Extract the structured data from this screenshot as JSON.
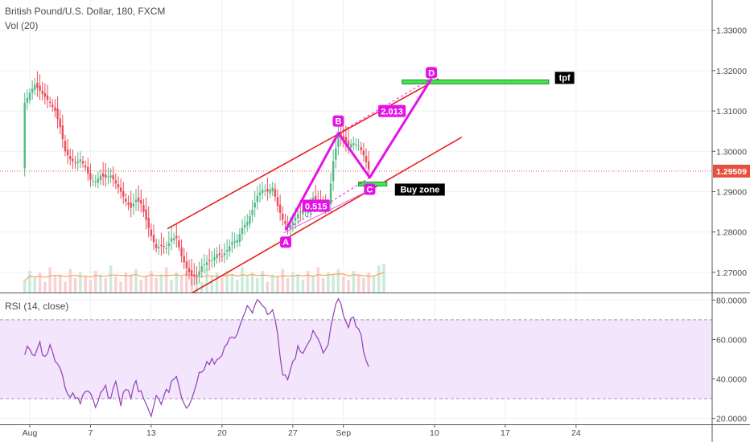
{
  "chart_data": {
    "type": "line",
    "symbol_title": "British Pound/U.S. Dollar, 180, FXCM",
    "volume_label": "Vol (20)",
    "rsi_label": "RSI (14, close)",
    "x_ticks": [
      "Aug",
      "7",
      "13",
      "20",
      "27",
      "Sep",
      "10",
      "17",
      "24"
    ],
    "price_axis": {
      "ticks": [
        "1.33000",
        "1.32000",
        "1.31000",
        "1.30000",
        "1.29000",
        "1.28000",
        "1.27000"
      ],
      "range": [
        1.265,
        1.3375
      ]
    },
    "rsi_axis": {
      "ticks": [
        "80.0000",
        "60.0000",
        "40.0000",
        "20.0000"
      ],
      "range": [
        17,
        83
      ],
      "band": [
        30,
        70
      ]
    },
    "current_price": {
      "label": "1.29509",
      "value": 1.29509,
      "color": "#e5503f"
    },
    "price_path": [
      [
        -0.5,
        1.312
      ],
      [
        0,
        1.3145
      ],
      [
        0.5,
        1.3165
      ],
      [
        1,
        1.315
      ],
      [
        1.5,
        1.3135
      ],
      [
        2,
        1.312
      ],
      [
        2.5,
        1.31
      ],
      [
        3,
        1.306
      ],
      [
        3.5,
        1.3
      ],
      [
        4,
        1.298
      ],
      [
        4.5,
        1.297
      ],
      [
        5,
        1.298
      ],
      [
        5.5,
        1.296
      ],
      [
        6,
        1.293
      ],
      [
        6.5,
        1.2925
      ],
      [
        7,
        1.294
      ],
      [
        7.5,
        1.2935
      ],
      [
        8,
        1.294
      ],
      [
        8.5,
        1.292
      ],
      [
        9,
        1.29
      ],
      [
        9.5,
        1.2875
      ],
      [
        10,
        1.286
      ],
      [
        10.5,
        1.288
      ],
      [
        11,
        1.287
      ],
      [
        11.5,
        1.283
      ],
      [
        12,
        1.279
      ],
      [
        12.5,
        1.276
      ],
      [
        13,
        1.2765
      ],
      [
        13.5,
        1.276
      ],
      [
        14,
        1.2785
      ],
      [
        14.5,
        1.2785
      ],
      [
        15,
        1.274
      ],
      [
        15.5,
        1.271
      ],
      [
        16,
        1.269
      ],
      [
        16.5,
        1.269
      ],
      [
        17,
        1.2715
      ],
      [
        17.5,
        1.2725
      ],
      [
        18,
        1.273
      ],
      [
        18.5,
        1.2745
      ],
      [
        19,
        1.274
      ],
      [
        19.5,
        1.2755
      ],
      [
        20,
        1.2775
      ],
      [
        20.5,
        1.278
      ],
      [
        21,
        1.281
      ],
      [
        21.5,
        1.2825
      ],
      [
        22,
        1.2855
      ],
      [
        22.5,
        1.289
      ],
      [
        23,
        1.2905
      ],
      [
        23.5,
        1.29
      ],
      [
        24,
        1.291
      ],
      [
        24.5,
        1.2865
      ],
      [
        25,
        1.283
      ],
      [
        25.5,
        1.281
      ],
      [
        26,
        1.2825
      ],
      [
        26.5,
        1.2845
      ],
      [
        27,
        1.2855
      ],
      [
        27.5,
        1.285
      ],
      [
        28,
        1.2885
      ],
      [
        28.5,
        1.2875
      ],
      [
        29,
        1.2865
      ],
      [
        29.5,
        1.2865
      ],
      [
        30,
        1.2975
      ],
      [
        30.5,
        1.304
      ],
      [
        31,
        1.303
      ],
      [
        31.5,
        1.3015
      ],
      [
        32,
        1.302
      ],
      [
        32.5,
        1.3015
      ],
      [
        33,
        1.299
      ],
      [
        33.5,
        1.2955
      ]
    ],
    "volume_bars": [
      0.35,
      0.6,
      0.4,
      0.55,
      0.3,
      0.7,
      0.45,
      0.5,
      0.3,
      0.65,
      0.4,
      0.55,
      0.45,
      0.35,
      0.6,
      0.5,
      0.4,
      0.75,
      0.45,
      0.3,
      0.55,
      0.5,
      0.65,
      0.35,
      0.45,
      0.6,
      0.4,
      0.5,
      0.7,
      0.35,
      0.55,
      0.45,
      0.6,
      0.4,
      0.5,
      0.3,
      0.65,
      0.45,
      0.55,
      0.4,
      0.6,
      0.5,
      0.35,
      0.7,
      0.45,
      0.55,
      0.4,
      0.6,
      0.3,
      0.5,
      0.45,
      0.65,
      0.4,
      0.55,
      0.5,
      0.35,
      0.6,
      0.45,
      0.7,
      0.4,
      0.55,
      0.5,
      0.65,
      0.45,
      0.35,
      0.6,
      0.5,
      0.4,
      0.55,
      0.45,
      0.75,
      0.8
    ],
    "rsi_path": [
      [
        -0.5,
        53
      ],
      [
        0,
        57
      ],
      [
        0.5,
        51
      ],
      [
        1,
        58
      ],
      [
        1.5,
        50
      ],
      [
        2,
        56
      ],
      [
        2.5,
        49
      ],
      [
        3,
        45
      ],
      [
        3.5,
        36
      ],
      [
        4,
        30
      ],
      [
        4.5,
        32
      ],
      [
        5,
        28
      ],
      [
        5.5,
        34
      ],
      [
        6,
        31
      ],
      [
        6.5,
        26
      ],
      [
        7,
        33
      ],
      [
        7.5,
        35
      ],
      [
        8,
        30
      ],
      [
        8.5,
        37
      ],
      [
        9,
        28
      ],
      [
        9.5,
        35
      ],
      [
        10,
        31
      ],
      [
        10.5,
        38
      ],
      [
        11,
        33
      ],
      [
        11.5,
        27
      ],
      [
        12,
        21
      ],
      [
        12.5,
        30
      ],
      [
        13,
        28
      ],
      [
        13.5,
        33
      ],
      [
        14,
        37
      ],
      [
        14.5,
        40
      ],
      [
        15,
        32
      ],
      [
        15.5,
        27
      ],
      [
        16,
        29
      ],
      [
        16.5,
        39
      ],
      [
        17,
        44
      ],
      [
        17.5,
        47
      ],
      [
        18,
        50
      ],
      [
        18.5,
        49
      ],
      [
        19,
        53
      ],
      [
        19.5,
        57
      ],
      [
        20,
        61
      ],
      [
        20.5,
        63
      ],
      [
        21,
        71
      ],
      [
        21.5,
        77
      ],
      [
        22,
        74
      ],
      [
        22.5,
        80
      ],
      [
        23,
        79
      ],
      [
        23.5,
        72
      ],
      [
        24,
        76
      ],
      [
        24.5,
        61
      ],
      [
        25,
        43
      ],
      [
        25.5,
        39
      ],
      [
        26,
        47
      ],
      [
        26.5,
        55
      ],
      [
        27,
        53
      ],
      [
        27.5,
        58
      ],
      [
        28,
        66
      ],
      [
        28.5,
        61
      ],
      [
        29,
        54
      ],
      [
        29.5,
        57
      ],
      [
        30,
        73
      ],
      [
        30.5,
        79
      ],
      [
        31,
        74
      ],
      [
        31.5,
        68
      ],
      [
        32,
        70
      ],
      [
        32.5,
        67
      ],
      [
        33,
        55
      ],
      [
        33.5,
        45
      ]
    ],
    "channel_lines": [
      {
        "name": "channel-upper",
        "from": [
          13.6,
          1.2808
        ],
        "to": [
          40.4,
          1.318
        ],
        "color": "#e8201e"
      },
      {
        "name": "channel-lower",
        "from": [
          16.1,
          1.265
        ],
        "to": [
          42.7,
          1.3035
        ],
        "color": "#e8201e"
      },
      {
        "name": "pattern-base",
        "from": [
          25.1,
          1.2798
        ],
        "to": [
          33.7,
          1.2905
        ],
        "color": "#e35cdc"
      }
    ],
    "pattern_points": [
      {
        "label": "A",
        "t": 25.3,
        "price": 1.2805,
        "label_price": 1.2775
      },
      {
        "label": "B",
        "t": 30.5,
        "price": 1.3045,
        "label_price": 1.3075
      },
      {
        "label": "C",
        "t": 33.6,
        "price": 1.2935,
        "label_price": 1.2906
      },
      {
        "label": "D",
        "t": 39.7,
        "price": 1.318,
        "label_price": 1.3195
      }
    ],
    "fib_labels": [
      {
        "text": "0.515",
        "t": 28.3,
        "price": 1.2864
      },
      {
        "text": "2.013",
        "t": 35.8,
        "price": 1.3099
      }
    ],
    "zones": [
      {
        "name": "tpf",
        "label": "tpf",
        "t_start": 36.8,
        "t_end": 51.3,
        "price_low": 1.3167,
        "price_high": 1.3177
      },
      {
        "name": "buy-zone",
        "label": "Buy zone",
        "t_start": 32.5,
        "t_end": 35.3,
        "price_low": 1.2914,
        "price_high": 1.2924
      }
    ],
    "colors": {
      "up": "#53b987",
      "down": "#eb4d5c",
      "rsi": "#8f42b8",
      "rsi_band": "#f3e5fb",
      "pattern": "#e512e8",
      "zone": "#47e350",
      "price_text": "#4a4a4a"
    }
  }
}
